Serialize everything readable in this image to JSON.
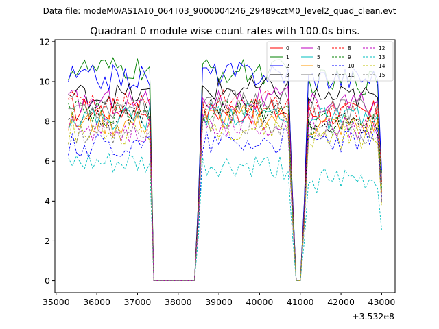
{
  "figure": {
    "suptitle": "Data file: modeM0/AS1A10_064T03_9000004246_29489cztM0_level2_quad_clean.evt"
  },
  "chart_data": {
    "type": "line",
    "title": "Quadrant 0 module wise count rates with 100.0s bins.",
    "xlabel": "",
    "ylabel": "",
    "x_offset_label": "+3.532e8",
    "xlim": [
      34970,
      43330
    ],
    "ylim": [
      -0.6,
      12.1
    ],
    "x_ticks": [
      35000,
      36000,
      37000,
      38000,
      39000,
      40000,
      41000,
      42000,
      43000
    ],
    "x_tick_labels": [
      "35000",
      "36000",
      "37000",
      "38000",
      "39000",
      "40000",
      "41000",
      "42000",
      "43000"
    ],
    "y_ticks": [
      0,
      2,
      4,
      6,
      8,
      10,
      12
    ],
    "y_tick_labels": [
      "0",
      "2",
      "4",
      "6",
      "8",
      "10",
      "12"
    ],
    "legend_position": "top-right",
    "segments": [
      {
        "kind": "data",
        "t_start": 35300,
        "t_end": 37300
      },
      {
        "kind": "fall",
        "t_start": 37300,
        "t_end": 37400
      },
      {
        "kind": "zero",
        "t_start": 37400,
        "t_end": 38400
      },
      {
        "kind": "rise",
        "t_start": 38400,
        "t_end": 38600
      },
      {
        "kind": "data",
        "t_start": 38600,
        "t_end": 40700
      },
      {
        "kind": "fall",
        "t_start": 40700,
        "t_end": 40900
      },
      {
        "kind": "zero",
        "t_start": 40900,
        "t_end": 41000
      },
      {
        "kind": "rise",
        "t_start": 41000,
        "t_end": 41200
      },
      {
        "kind": "data",
        "t_start": 41200,
        "t_end": 42900
      },
      {
        "kind": "fall",
        "t_start": 42900,
        "t_end": 43000
      }
    ],
    "series": [
      {
        "name": "0",
        "color": "#ff0000",
        "dash": "solid",
        "levels": [
          8.6,
          8.5,
          8.4
        ]
      },
      {
        "name": "1",
        "color": "#008000",
        "dash": "solid",
        "levels": [
          10.6,
          10.5,
          10.0
        ]
      },
      {
        "name": "2",
        "color": "#0000ff",
        "dash": "solid",
        "levels": [
          10.2,
          10.4,
          10.2
        ]
      },
      {
        "name": "3",
        "color": "#000000",
        "dash": "solid",
        "levels": [
          9.3,
          9.6,
          9.2
        ]
      },
      {
        "name": "4",
        "color": "#bf00bf",
        "dash": "solid",
        "levels": [
          9.0,
          9.1,
          8.9
        ]
      },
      {
        "name": "5",
        "color": "#00bfbf",
        "dash": "solid",
        "levels": [
          8.2,
          8.4,
          8.1
        ]
      },
      {
        "name": "6",
        "color": "#ff9900",
        "dash": "solid",
        "levels": [
          7.9,
          8.2,
          7.8
        ]
      },
      {
        "name": "7",
        "color": "#808080",
        "dash": "solid",
        "levels": [
          8.7,
          9.1,
          8.6
        ]
      },
      {
        "name": "8",
        "color": "#ff0000",
        "dash": "dashed",
        "levels": [
          8.9,
          9.0,
          8.4
        ]
      },
      {
        "name": "9",
        "color": "#008000",
        "dash": "dashed",
        "levels": [
          8.4,
          8.5,
          7.8
        ]
      },
      {
        "name": "10",
        "color": "#0000ff",
        "dash": "dashed",
        "levels": [
          6.8,
          7.0,
          7.0
        ]
      },
      {
        "name": "11",
        "color": "#000000",
        "dash": "dashed",
        "levels": [
          8.3,
          8.6,
          7.9
        ]
      },
      {
        "name": "12",
        "color": "#bf00bf",
        "dash": "dashed",
        "levels": [
          7.6,
          7.8,
          7.7
        ]
      },
      {
        "name": "13",
        "color": "#00bfbf",
        "dash": "dashed",
        "levels": [
          5.8,
          5.7,
          5.0
        ]
      },
      {
        "name": "14",
        "color": "#bfbf00",
        "dash": "dashed",
        "levels": [
          7.5,
          7.7,
          7.2
        ]
      },
      {
        "name": "15",
        "color": "#808080",
        "dash": "dashed",
        "levels": [
          7.2,
          7.9,
          7.4
        ]
      }
    ]
  }
}
